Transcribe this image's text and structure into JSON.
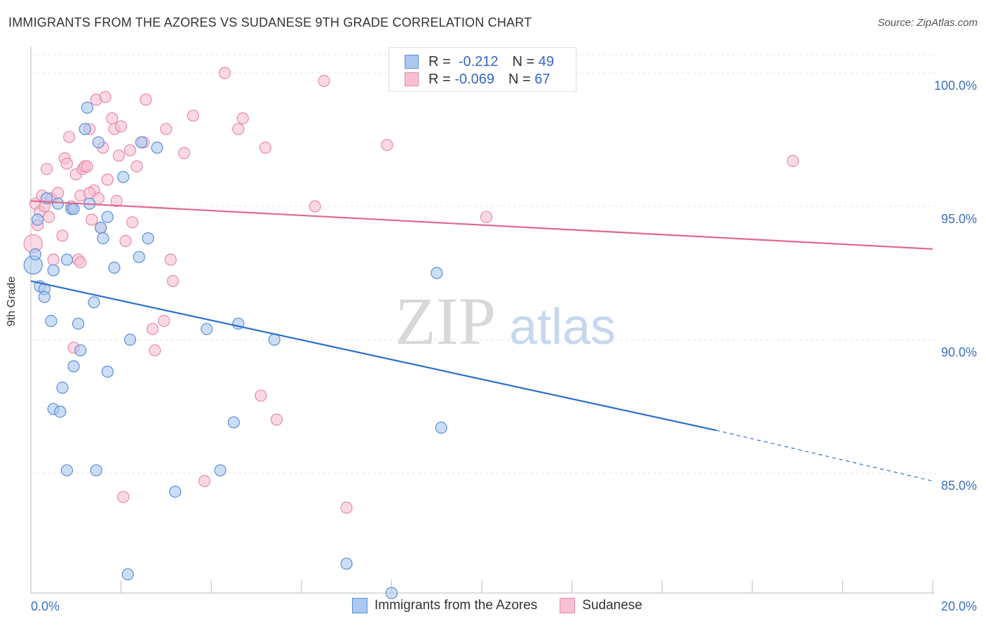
{
  "title": "IMMIGRANTS FROM THE AZORES VS SUDANESE 9TH GRADE CORRELATION CHART",
  "source": "Source: ZipAtlas.com",
  "watermark": {
    "zip": "ZIP",
    "atlas": "atlas"
  },
  "legend_top": {
    "rows": [
      {
        "r_label": "R =",
        "r_value": "-0.212",
        "n_label": "N =",
        "n_value": "49"
      },
      {
        "r_label": "R =",
        "r_value": "-0.069",
        "n_label": "N =",
        "n_value": "67"
      }
    ]
  },
  "legend_bottom": [
    "Immigrants from the Azores",
    "Sudanese"
  ],
  "colors": {
    "blue_fill": "#aac8f0",
    "blue_stroke": "#5b8fd6",
    "blue_line": "#2a6fcf",
    "pink_fill": "#f7c0d2",
    "pink_stroke": "#e88aaa",
    "pink_line": "#e06890",
    "tick_label": "#3a6fc4",
    "grid": "#e4e4e4"
  },
  "chart_data": {
    "type": "scatter",
    "title": "IMMIGRANTS FROM THE AZORES VS SUDANESE 9TH GRADE CORRELATION CHART",
    "xlabel": "",
    "ylabel": "9th Grade",
    "xlim": [
      0,
      20
    ],
    "ylim": [
      80.5,
      101
    ],
    "x_tick_labels": [
      "0.0%",
      "20.0%"
    ],
    "y_ticks": [
      85,
      90,
      95,
      100
    ],
    "y_tick_labels": [
      "85.0%",
      "90.0%",
      "95.0%",
      "100.0%"
    ],
    "grid": true,
    "legend_placement": "bottom",
    "series": [
      {
        "name": "Immigrants from the Azores",
        "R": -0.212,
        "N": 49,
        "trend": {
          "x0": 0,
          "y0": 92.2,
          "x1": 15.2,
          "y1": 86.6,
          "dashed_to_x": 20,
          "dashed_to_y": 84.7
        },
        "points": [
          [
            0.05,
            92.8
          ],
          [
            0.1,
            93.2
          ],
          [
            0.15,
            94.5
          ],
          [
            0.2,
            92.0
          ],
          [
            0.3,
            91.9
          ],
          [
            0.3,
            91.6
          ],
          [
            0.35,
            95.3
          ],
          [
            0.45,
            90.7
          ],
          [
            0.5,
            92.6
          ],
          [
            0.5,
            87.4
          ],
          [
            0.6,
            95.1
          ],
          [
            0.65,
            87.3
          ],
          [
            0.7,
            88.2
          ],
          [
            0.8,
            85.1
          ],
          [
            0.8,
            93.0
          ],
          [
            0.9,
            94.9
          ],
          [
            0.95,
            89.0
          ],
          [
            1.05,
            90.6
          ],
          [
            1.1,
            89.6
          ],
          [
            1.2,
            97.9
          ],
          [
            1.25,
            98.7
          ],
          [
            1.3,
            95.1
          ],
          [
            1.4,
            91.4
          ],
          [
            1.45,
            85.1
          ],
          [
            1.5,
            97.4
          ],
          [
            1.55,
            94.2
          ],
          [
            1.6,
            93.8
          ],
          [
            1.7,
            94.6
          ],
          [
            1.7,
            88.8
          ],
          [
            1.85,
            92.7
          ],
          [
            2.05,
            96.1
          ],
          [
            2.15,
            81.2
          ],
          [
            2.2,
            90.0
          ],
          [
            2.4,
            93.1
          ],
          [
            2.45,
            97.4
          ],
          [
            2.6,
            93.8
          ],
          [
            2.8,
            97.2
          ],
          [
            3.2,
            84.3
          ],
          [
            3.9,
            90.4
          ],
          [
            4.2,
            85.1
          ],
          [
            4.5,
            86.9
          ],
          [
            4.6,
            90.6
          ],
          [
            5.4,
            90.0
          ],
          [
            7.0,
            81.6
          ],
          [
            8.0,
            80.5
          ],
          [
            9.0,
            92.5
          ],
          [
            9.1,
            86.7
          ],
          [
            11.2,
            100.1
          ],
          [
            0.95,
            94.9
          ]
        ]
      },
      {
        "name": "Sudanese",
        "R": -0.069,
        "N": 67,
        "trend": {
          "x0": 0,
          "y0": 95.2,
          "x1": 20,
          "y1": 93.4
        },
        "points": [
          [
            0.05,
            93.6
          ],
          [
            0.1,
            95.1
          ],
          [
            0.15,
            94.3
          ],
          [
            0.2,
            94.8
          ],
          [
            0.25,
            95.4
          ],
          [
            0.3,
            95.0
          ],
          [
            0.35,
            96.4
          ],
          [
            0.4,
            94.6
          ],
          [
            0.45,
            95.3
          ],
          [
            0.5,
            93.0
          ],
          [
            0.6,
            95.5
          ],
          [
            0.7,
            93.9
          ],
          [
            0.75,
            96.8
          ],
          [
            0.8,
            96.6
          ],
          [
            0.85,
            97.6
          ],
          [
            0.9,
            95.0
          ],
          [
            0.95,
            89.7
          ],
          [
            1.0,
            96.2
          ],
          [
            1.05,
            93.0
          ],
          [
            1.1,
            95.4
          ],
          [
            1.15,
            96.4
          ],
          [
            1.2,
            96.5
          ],
          [
            1.25,
            96.5
          ],
          [
            1.3,
            97.9
          ],
          [
            1.35,
            94.5
          ],
          [
            1.4,
            95.6
          ],
          [
            1.45,
            99.0
          ],
          [
            1.5,
            95.3
          ],
          [
            1.55,
            94.2
          ],
          [
            1.6,
            97.2
          ],
          [
            1.65,
            99.1
          ],
          [
            1.7,
            96.0
          ],
          [
            1.8,
            98.3
          ],
          [
            1.85,
            97.9
          ],
          [
            1.9,
            95.2
          ],
          [
            1.95,
            96.9
          ],
          [
            2.0,
            98.0
          ],
          [
            2.05,
            84.1
          ],
          [
            2.1,
            93.7
          ],
          [
            2.2,
            97.1
          ],
          [
            2.25,
            94.4
          ],
          [
            2.35,
            96.5
          ],
          [
            2.5,
            97.4
          ],
          [
            2.55,
            99.0
          ],
          [
            2.7,
            90.4
          ],
          [
            2.75,
            89.6
          ],
          [
            2.95,
            90.7
          ],
          [
            3.0,
            97.9
          ],
          [
            3.15,
            92.2
          ],
          [
            3.1,
            93.0
          ],
          [
            3.4,
            97.0
          ],
          [
            3.6,
            98.4
          ],
          [
            3.85,
            84.7
          ],
          [
            4.3,
            100.0
          ],
          [
            4.6,
            97.9
          ],
          [
            4.7,
            98.3
          ],
          [
            5.1,
            87.9
          ],
          [
            5.2,
            97.2
          ],
          [
            5.45,
            87.0
          ],
          [
            6.3,
            95.0
          ],
          [
            6.5,
            99.7
          ],
          [
            7.0,
            83.7
          ],
          [
            7.9,
            97.3
          ],
          [
            10.1,
            94.6
          ],
          [
            16.9,
            96.7
          ],
          [
            1.1,
            92.9
          ],
          [
            1.3,
            95.5
          ]
        ]
      }
    ]
  }
}
